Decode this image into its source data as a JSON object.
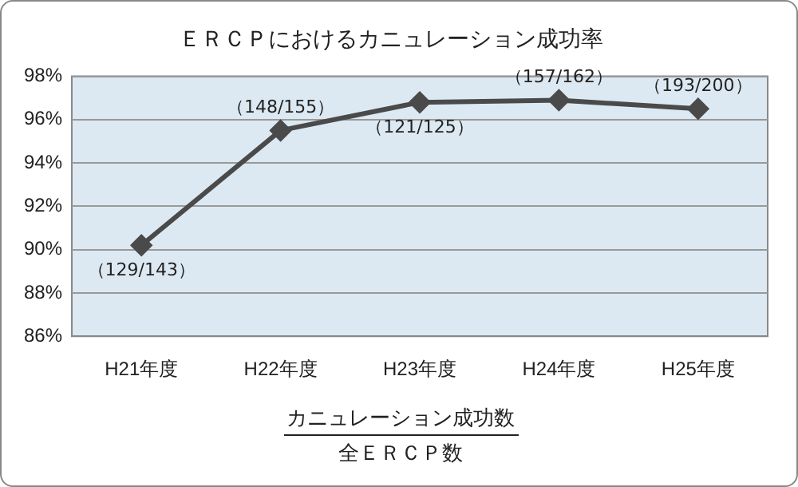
{
  "chart_data": {
    "type": "line",
    "title": "ＥＲＣＰにおけるカニュレーション成功率",
    "categories": [
      "H21年度",
      "H22年度",
      "H23年度",
      "H24年度",
      "H25年度"
    ],
    "series": [
      {
        "color": "#4a4a4a",
        "values": [
          90.2,
          95.5,
          96.8,
          96.9,
          96.5
        ]
      }
    ],
    "ylim": [
      86,
      98
    ],
    "yticks": [
      {
        "value": 86,
        "label": "86%"
      },
      {
        "value": 88,
        "label": "88%"
      },
      {
        "value": 90,
        "label": "90%"
      },
      {
        "value": 92,
        "label": "92%"
      },
      {
        "value": 94,
        "label": "94%"
      },
      {
        "value": 96,
        "label": "96%"
      },
      {
        "value": 98,
        "label": "98%"
      }
    ],
    "grid": "y",
    "legend": false,
    "marker": "diamond",
    "line_style": "solid",
    "xlabel": "カニュレーション成功数",
    "annotations": [
      {
        "text": "（129/143）",
        "x": "H21年度",
        "y": 90.2
      },
      {
        "text": "（148/155）",
        "x": "H22年度",
        "y": 95.5
      },
      {
        "text": "（121/125）",
        "x": "H23年度",
        "y": 96.8
      },
      {
        "text": "（157/162）",
        "x": "H24年度",
        "y": 96.9
      },
      {
        "text": "（193/200）",
        "x": "H25年度",
        "y": 96.5
      },
      "全ＥＲＣＰ数"
    ]
  }
}
